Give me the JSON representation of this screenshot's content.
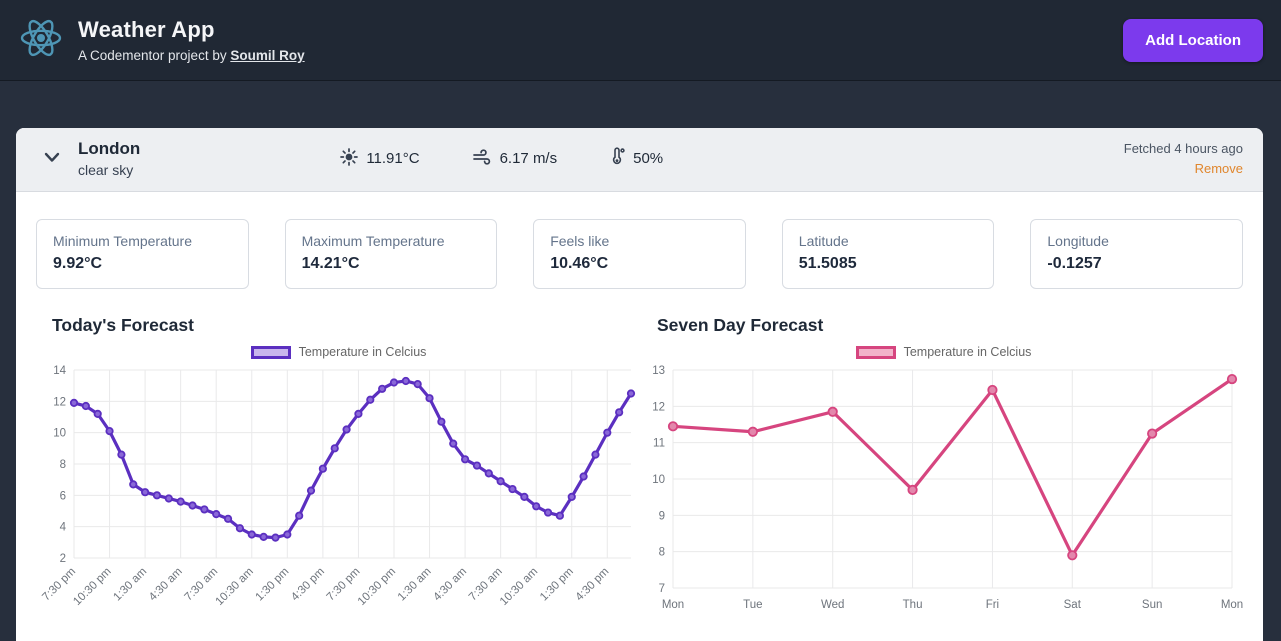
{
  "header": {
    "title": "Weather App",
    "subtitle_prefix": "A Codementor project by ",
    "author": "Soumil Roy",
    "add_location_label": "Add Location",
    "accent_color": "#7c3aed"
  },
  "location": {
    "name": "London",
    "condition": "clear sky",
    "temperature": "11.91°C",
    "wind": "6.17 m/s",
    "humidity": "50%",
    "fetched": "Fetched 4 hours ago",
    "remove_label": "Remove",
    "remove_color": "#e0862d"
  },
  "stats": [
    {
      "label": "Minimum Temperature",
      "value": "9.92°C"
    },
    {
      "label": "Maximum Temperature",
      "value": "14.21°C"
    },
    {
      "label": "Feels like",
      "value": "10.46°C"
    },
    {
      "label": "Latitude",
      "value": "51.5085"
    },
    {
      "label": "Longitude",
      "value": "-0.1257"
    }
  ],
  "chart_data": [
    {
      "type": "line",
      "title": "Today's Forecast",
      "legend": "Temperature in Celcius",
      "line_color": "#5b2fc0",
      "point_fill": "#8a68d8",
      "legend_fill": "#c9b6ec",
      "ylabel": "",
      "xlabel": "",
      "ylim": [
        2,
        14
      ],
      "ystep": 2,
      "label_every": 3,
      "rotate_labels": true,
      "x_labels": [
        "7:30 pm",
        "10:30 pm",
        "1:30 am",
        "4:30 am",
        "7:30 am",
        "10:30 am",
        "1:30 pm",
        "4:30 pm",
        "7:30 pm",
        "10:30 pm",
        "1:30 am",
        "4:30 am",
        "7:30 am",
        "10:30 am",
        "1:30 pm",
        "4:30 pm"
      ],
      "values": [
        11.9,
        11.7,
        11.2,
        10.1,
        8.6,
        6.7,
        6.2,
        6.0,
        5.8,
        5.6,
        5.35,
        5.1,
        4.8,
        4.5,
        3.9,
        3.5,
        3.35,
        3.3,
        3.5,
        4.7,
        6.3,
        7.7,
        9.0,
        10.2,
        11.2,
        12.1,
        12.8,
        13.2,
        13.3,
        13.1,
        12.2,
        10.7,
        9.3,
        8.3,
        7.9,
        7.4,
        6.9,
        6.4,
        5.9,
        5.3,
        4.9,
        4.7,
        5.9,
        7.2,
        8.6,
        10.0,
        11.3,
        12.5
      ]
    },
    {
      "type": "line",
      "title": "Seven Day Forecast",
      "legend": "Temperature in Celcius",
      "line_color": "#d6457f",
      "point_fill": "#e387ac",
      "legend_fill": "#f2b3ca",
      "ylabel": "",
      "xlabel": "",
      "ylim": [
        7,
        13
      ],
      "ystep": 1,
      "label_every": 1,
      "rotate_labels": false,
      "x_labels": [
        "Mon",
        "Tue",
        "Wed",
        "Thu",
        "Fri",
        "Sat",
        "Sun",
        "Mon"
      ],
      "values": [
        11.45,
        11.3,
        11.85,
        9.7,
        12.45,
        7.9,
        11.25,
        12.75
      ]
    }
  ]
}
